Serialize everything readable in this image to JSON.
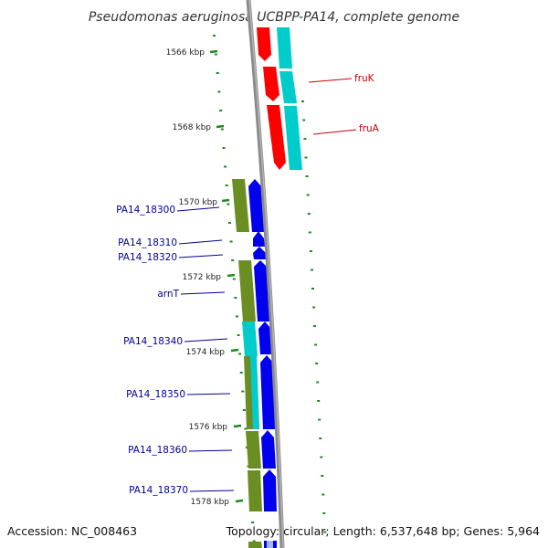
{
  "title": "Pseudomonas aeruginosa UCBPP-PA14, complete genome",
  "accession": "Accession: NC_008463",
  "topology": "Topology: circular; Length: 6,537,648 bp; Genes: 5,964",
  "colors": {
    "backbone": "#8a8a8a",
    "tick": "#1e8a1e",
    "red_gene": "#ff0000",
    "cyan_gene": "#00cccc",
    "blue_gene": "#0000ee",
    "olive_gene": "#6b8e23",
    "red_label": "#cc0000",
    "blue_label": "#000099"
  },
  "ticks": [
    {
      "label": "1566 kbp"
    },
    {
      "label": "1568 kbp"
    },
    {
      "label": "1570 kbp"
    },
    {
      "label": "1572 kbp"
    },
    {
      "label": "1574 kbp"
    },
    {
      "label": "1576 kbp"
    },
    {
      "label": "1578 kbp"
    }
  ],
  "genes": [
    {
      "name": "fruK",
      "color": "red"
    },
    {
      "name": "fruA",
      "color": "red"
    },
    {
      "name": "PA14_18300",
      "color": "blue"
    },
    {
      "name": "PA14_18310",
      "color": "blue"
    },
    {
      "name": "PA14_18320",
      "color": "blue"
    },
    {
      "name": "arnT",
      "color": "blue"
    },
    {
      "name": "PA14_18340",
      "color": "blue"
    },
    {
      "name": "PA14_18350",
      "color": "blue"
    },
    {
      "name": "PA14_18360",
      "color": "blue"
    },
    {
      "name": "PA14_18370",
      "color": "blue"
    }
  ]
}
